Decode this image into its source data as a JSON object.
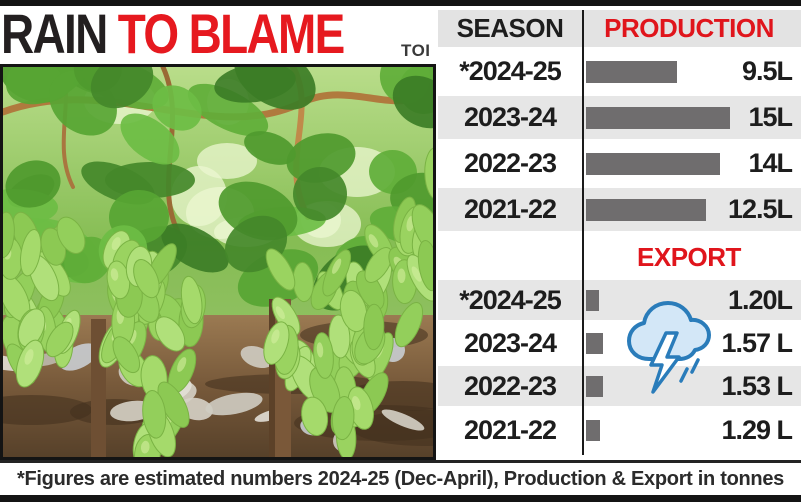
{
  "masthead": {
    "title_black": "RAIN",
    "title_red": " TO BLAME",
    "credit": "TOI"
  },
  "table": {
    "season_header": "SEASON",
    "production_header": "PRODUCTION",
    "export_header": "EXPORT"
  },
  "footnote": "*Figures are estimated numbers 2024-25 (Dec-April), Production & Export in tonnes",
  "icons": {
    "storm_cloud": "cloud-with-lightning-icon"
  },
  "colors": {
    "accent_red": "#e6191f",
    "bar_gray": "#6f6d6e",
    "row_stripe_gray": "#e6e6e6",
    "header_gray": "#e3e3e3",
    "cloud_outline_blue": "#2a7cba",
    "cloud_fill_blue": "#d3e7f7",
    "frame_black": "#141414"
  },
  "chart_data": [
    {
      "type": "bar",
      "title": "PRODUCTION",
      "orientation": "horizontal",
      "categories": [
        "*2024-25",
        "2023-24",
        "2022-23",
        "2021-22"
      ],
      "values": [
        9.5,
        15,
        14,
        12.5
      ],
      "value_labels": [
        "9.5L",
        "15L",
        "14L",
        "12.5L"
      ],
      "unit": "lakh tonnes",
      "note": "*2024-25 figures estimated (Dec-April)"
    },
    {
      "type": "bar",
      "title": "EXPORT",
      "orientation": "horizontal",
      "categories": [
        "*2024-25",
        "2023-24",
        "2022-23",
        "2021-22"
      ],
      "values": [
        1.2,
        1.57,
        1.53,
        1.29
      ],
      "value_labels": [
        "1.20L",
        "1.57 L",
        "1.53 L",
        "1.29 L"
      ],
      "unit": "lakh tonnes",
      "note": "*2024-25 figures estimated (Dec-April)"
    }
  ]
}
